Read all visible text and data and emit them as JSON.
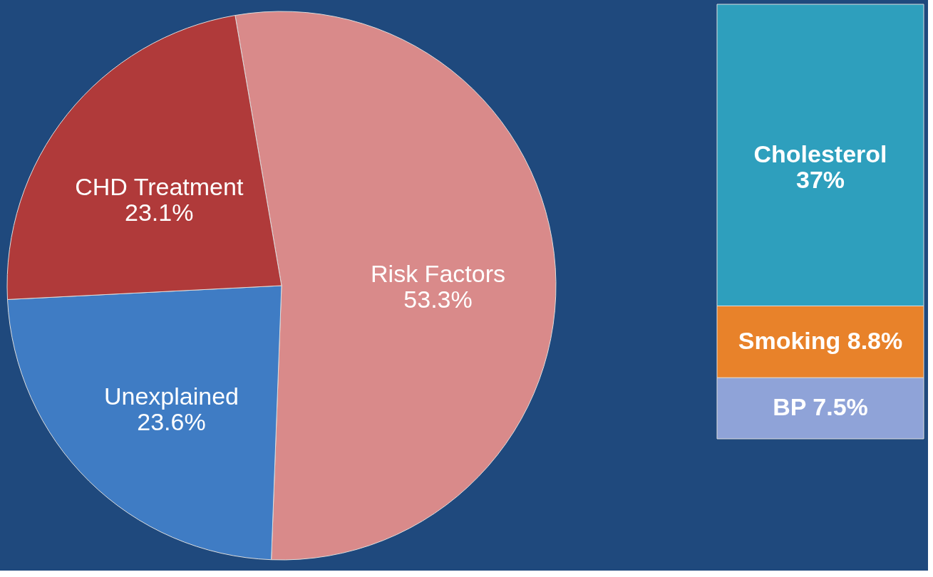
{
  "chart_data": [
    {
      "type": "pie",
      "categories": [
        "Risk Factors",
        "Unexplained",
        "CHD Treatment"
      ],
      "values": [
        53.3,
        23.6,
        23.1
      ],
      "colors": [
        "#d98a8a",
        "#3f7cc4",
        "#b03a3a"
      ],
      "value_labels": [
        "53.3%",
        "23.6%",
        "23.1%"
      ],
      "legend": false
    },
    {
      "type": "bar",
      "stacked": true,
      "categories": [
        null
      ],
      "legend": false,
      "series": [
        {
          "name": "BP",
          "color": "#8fa3d8",
          "values": [
            7.5
          ],
          "value_labels": [
            "7.5%"
          ]
        },
        {
          "name": "Smoking",
          "color": "#e8822a",
          "values": [
            8.8
          ],
          "value_labels": [
            "8.8%"
          ]
        },
        {
          "name": "Cholesterol",
          "color": "#2e9fbd",
          "values": [
            37
          ],
          "value_labels": [
            "37%"
          ]
        }
      ]
    }
  ]
}
